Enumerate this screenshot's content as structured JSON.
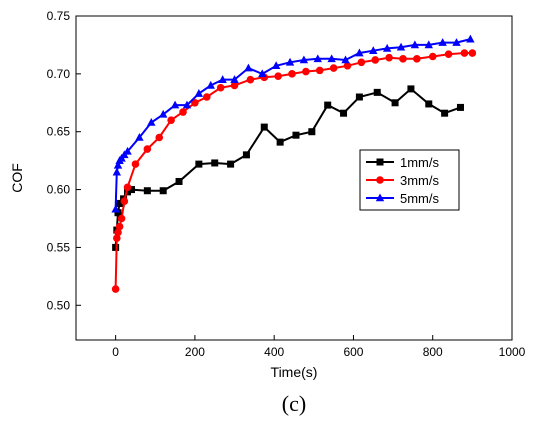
{
  "chart_data": {
    "type": "line",
    "caption": "(c)",
    "xlabel": "Time(s)",
    "ylabel": "COF",
    "xlim": [
      -100,
      1000
    ],
    "ylim": [
      0.47,
      0.75
    ],
    "xticks": [
      0,
      200,
      400,
      600,
      800,
      1000
    ],
    "yticks": [
      0.5,
      0.55,
      0.6,
      0.65,
      0.7,
      0.75
    ],
    "grid": false,
    "legend_position": "center-right",
    "series": [
      {
        "name": "1mm/s",
        "color": "#000000",
        "marker": "square",
        "x": [
          0,
          3,
          6,
          10,
          14,
          20,
          30,
          40,
          80,
          120,
          160,
          210,
          250,
          290,
          330,
          375,
          415,
          455,
          495,
          535,
          575,
          615,
          660,
          705,
          745,
          790,
          830,
          870
        ],
        "y": [
          0.55,
          0.565,
          0.58,
          0.588,
          0.588,
          0.592,
          0.598,
          0.6,
          0.599,
          0.599,
          0.607,
          0.622,
          0.623,
          0.622,
          0.63,
          0.654,
          0.641,
          0.647,
          0.65,
          0.673,
          0.666,
          0.68,
          0.684,
          0.675,
          0.687,
          0.674,
          0.666,
          0.671
        ]
      },
      {
        "name": "3mm/s",
        "color": "#ff0000",
        "marker": "circle",
        "x": [
          0,
          3,
          6,
          10,
          15,
          22,
          30,
          50,
          80,
          110,
          140,
          170,
          200,
          230,
          265,
          300,
          340,
          375,
          410,
          445,
          480,
          515,
          550,
          585,
          620,
          655,
          690,
          725,
          760,
          800,
          840,
          880,
          900
        ],
        "y": [
          0.514,
          0.558,
          0.563,
          0.568,
          0.575,
          0.59,
          0.602,
          0.622,
          0.635,
          0.645,
          0.66,
          0.667,
          0.675,
          0.68,
          0.688,
          0.69,
          0.695,
          0.697,
          0.698,
          0.7,
          0.702,
          0.703,
          0.705,
          0.707,
          0.71,
          0.712,
          0.714,
          0.713,
          0.713,
          0.715,
          0.717,
          0.718,
          0.718
        ]
      },
      {
        "name": "5mm/s",
        "color": "#0000ff",
        "marker": "triangle",
        "x": [
          0,
          3,
          6,
          10,
          15,
          22,
          30,
          60,
          90,
          120,
          150,
          180,
          210,
          240,
          270,
          300,
          335,
          370,
          405,
          440,
          475,
          510,
          545,
          580,
          615,
          650,
          685,
          720,
          755,
          790,
          825,
          860,
          895
        ],
        "y": [
          0.583,
          0.615,
          0.621,
          0.625,
          0.627,
          0.63,
          0.633,
          0.645,
          0.658,
          0.665,
          0.673,
          0.673,
          0.683,
          0.69,
          0.695,
          0.695,
          0.705,
          0.7,
          0.707,
          0.71,
          0.712,
          0.713,
          0.713,
          0.712,
          0.718,
          0.72,
          0.722,
          0.723,
          0.725,
          0.725,
          0.727,
          0.727,
          0.73
        ]
      }
    ]
  }
}
